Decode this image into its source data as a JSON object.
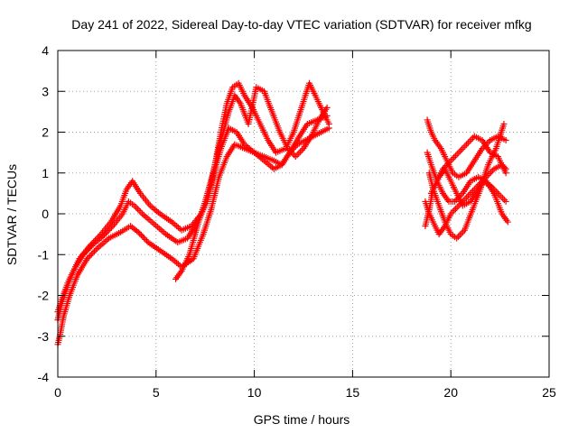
{
  "chart_data": {
    "type": "scatter",
    "title": "Day 241 of 2022, Sidereal Day-to-day VTEC variation (SDTVAR) for receiver mfkg",
    "xlabel": "GPS time / hours",
    "ylabel": "SDTVAR / TECUs",
    "xlim": [
      0,
      25
    ],
    "ylim": [
      -4,
      4
    ],
    "x_ticks": [
      "0",
      "5",
      "10",
      "15",
      "20",
      "25"
    ],
    "y_ticks": [
      "-4",
      "-3",
      "-2",
      "-1",
      "0",
      "1",
      "2",
      "3",
      "4"
    ],
    "grid": true,
    "marker": "plus",
    "color": "#ff0000",
    "series": [
      {
        "x": [
          0.0,
          0.1,
          0.3,
          0.6,
          1.0,
          1.5,
          2.0,
          2.6,
          3.2,
          3.7,
          4.1,
          4.6,
          5.2,
          5.8,
          6.3,
          6.9,
          7.4,
          7.8,
          8.2,
          8.6,
          9.0,
          9.5,
          10.0,
          10.5,
          11.0,
          11.4,
          11.8,
          12.2,
          12.6,
          13.0,
          13.4,
          13.8
        ],
        "y": [
          -3.2,
          -3.0,
          -2.5,
          -2.0,
          -1.5,
          -1.1,
          -0.85,
          -0.6,
          -0.45,
          -0.3,
          -0.45,
          -0.7,
          -0.9,
          -1.1,
          -1.3,
          -1.1,
          -0.5,
          0.1,
          0.9,
          1.4,
          1.7,
          1.6,
          1.5,
          1.4,
          1.3,
          1.2,
          1.5,
          1.7,
          1.8,
          1.9,
          2.0,
          2.1
        ]
      },
      {
        "x": [
          0.0,
          0.2,
          0.5,
          0.9,
          1.3,
          1.8,
          2.3,
          2.8,
          3.3,
          3.6,
          3.9,
          4.3,
          4.9,
          5.5,
          6.1,
          6.6,
          7.1,
          7.6,
          7.9,
          8.3,
          8.7,
          9.1,
          9.5,
          10.0,
          10.5,
          11.0,
          11.4,
          11.8,
          12.3,
          12.7,
          13.2,
          13.7
        ],
        "y": [
          -2.4,
          -2.1,
          -1.7,
          -1.3,
          -1.0,
          -0.75,
          -0.55,
          -0.3,
          0.0,
          0.3,
          0.2,
          0.0,
          -0.25,
          -0.5,
          -0.7,
          -0.6,
          -0.2,
          0.3,
          0.9,
          1.6,
          2.1,
          2.0,
          1.7,
          1.5,
          1.3,
          1.1,
          1.2,
          1.5,
          1.9,
          2.2,
          2.3,
          2.4
        ]
      },
      {
        "x": [
          0.0,
          0.2,
          0.4,
          0.7,
          1.1,
          1.6,
          2.2,
          2.7,
          3.2,
          3.5,
          3.8,
          4.2,
          4.7,
          5.2,
          5.8,
          6.3,
          6.8,
          7.3,
          7.7,
          8.0,
          8.3,
          8.6,
          8.9,
          9.2,
          9.5,
          9.9,
          10.3,
          10.7,
          11.1,
          11.6,
          12.0,
          12.4,
          12.8,
          13.3,
          13.8
        ],
        "y": [
          -2.6,
          -2.2,
          -1.9,
          -1.5,
          -1.1,
          -0.8,
          -0.5,
          -0.2,
          0.2,
          0.6,
          0.8,
          0.5,
          0.2,
          0.0,
          -0.2,
          -0.4,
          -0.3,
          0.0,
          0.5,
          1.2,
          2.0,
          2.7,
          3.1,
          3.2,
          2.9,
          2.6,
          2.2,
          1.8,
          1.5,
          1.6,
          2.0,
          2.6,
          3.2,
          2.7,
          2.2
        ]
      },
      {
        "x": [
          6.0,
          6.3,
          6.7,
          7.1,
          7.5,
          7.9,
          8.3,
          8.7,
          9.0,
          9.3,
          9.7,
          10.1,
          10.5,
          10.9,
          11.3,
          11.7,
          12.1,
          12.5,
          12.9,
          13.3,
          13.7
        ],
        "y": [
          -1.6,
          -1.4,
          -1.0,
          -0.3,
          0.3,
          1.0,
          1.8,
          2.5,
          2.9,
          2.7,
          2.2,
          3.1,
          3.0,
          2.5,
          2.0,
          1.6,
          1.4,
          1.6,
          1.9,
          2.3,
          2.6
        ]
      },
      {
        "x": [
          18.7,
          18.9,
          19.1,
          19.4,
          19.7,
          20.0,
          20.3,
          20.6,
          21.0,
          21.4,
          21.8,
          22.2,
          22.6,
          22.8
        ],
        "y": [
          -0.3,
          0.1,
          0.6,
          0.9,
          1.1,
          0.8,
          0.5,
          0.2,
          0.3,
          0.6,
          0.9,
          1.1,
          1.2,
          1.1
        ]
      },
      {
        "x": [
          18.8,
          19.0,
          19.2,
          19.5,
          19.8,
          20.1,
          20.4,
          20.8,
          21.2,
          21.6,
          22.0,
          22.4,
          22.8
        ],
        "y": [
          2.3,
          2.0,
          1.8,
          1.6,
          1.3,
          1.0,
          0.9,
          1.0,
          1.3,
          1.6,
          1.8,
          1.9,
          1.8
        ]
      },
      {
        "x": [
          18.7,
          18.9,
          19.1,
          19.4,
          19.7,
          20.0,
          20.4,
          20.8,
          21.2,
          21.6,
          22.0,
          22.4,
          22.8
        ],
        "y": [
          0.3,
          0.0,
          -0.2,
          -0.5,
          -0.3,
          0.0,
          0.2,
          0.4,
          0.6,
          0.8,
          0.7,
          0.5,
          0.3
        ]
      },
      {
        "x": [
          18.8,
          19.0,
          19.3,
          19.6,
          19.9,
          20.2,
          20.6,
          21.0,
          21.4,
          21.8,
          22.2,
          22.6,
          22.9
        ],
        "y": [
          1.5,
          1.2,
          0.8,
          0.5,
          0.3,
          0.3,
          0.5,
          0.8,
          0.9,
          0.8,
          0.5,
          0.0,
          -0.2
        ]
      },
      {
        "x": [
          18.9,
          19.1,
          19.4,
          19.7,
          20.0,
          20.3,
          20.7,
          21.1,
          21.5,
          21.9,
          22.3,
          22.7
        ],
        "y": [
          1.0,
          0.6,
          0.2,
          -0.2,
          -0.5,
          -0.6,
          -0.4,
          0.1,
          0.6,
          1.2,
          1.6,
          2.2
        ]
      },
      {
        "x": [
          19.0,
          19.3,
          19.6,
          20.0,
          20.4,
          20.8,
          21.2,
          21.6,
          22.0,
          22.4,
          22.8
        ],
        "y": [
          0.5,
          0.8,
          1.1,
          1.3,
          1.5,
          1.7,
          1.9,
          1.8,
          1.5,
          1.4,
          1.0
        ]
      }
    ]
  }
}
